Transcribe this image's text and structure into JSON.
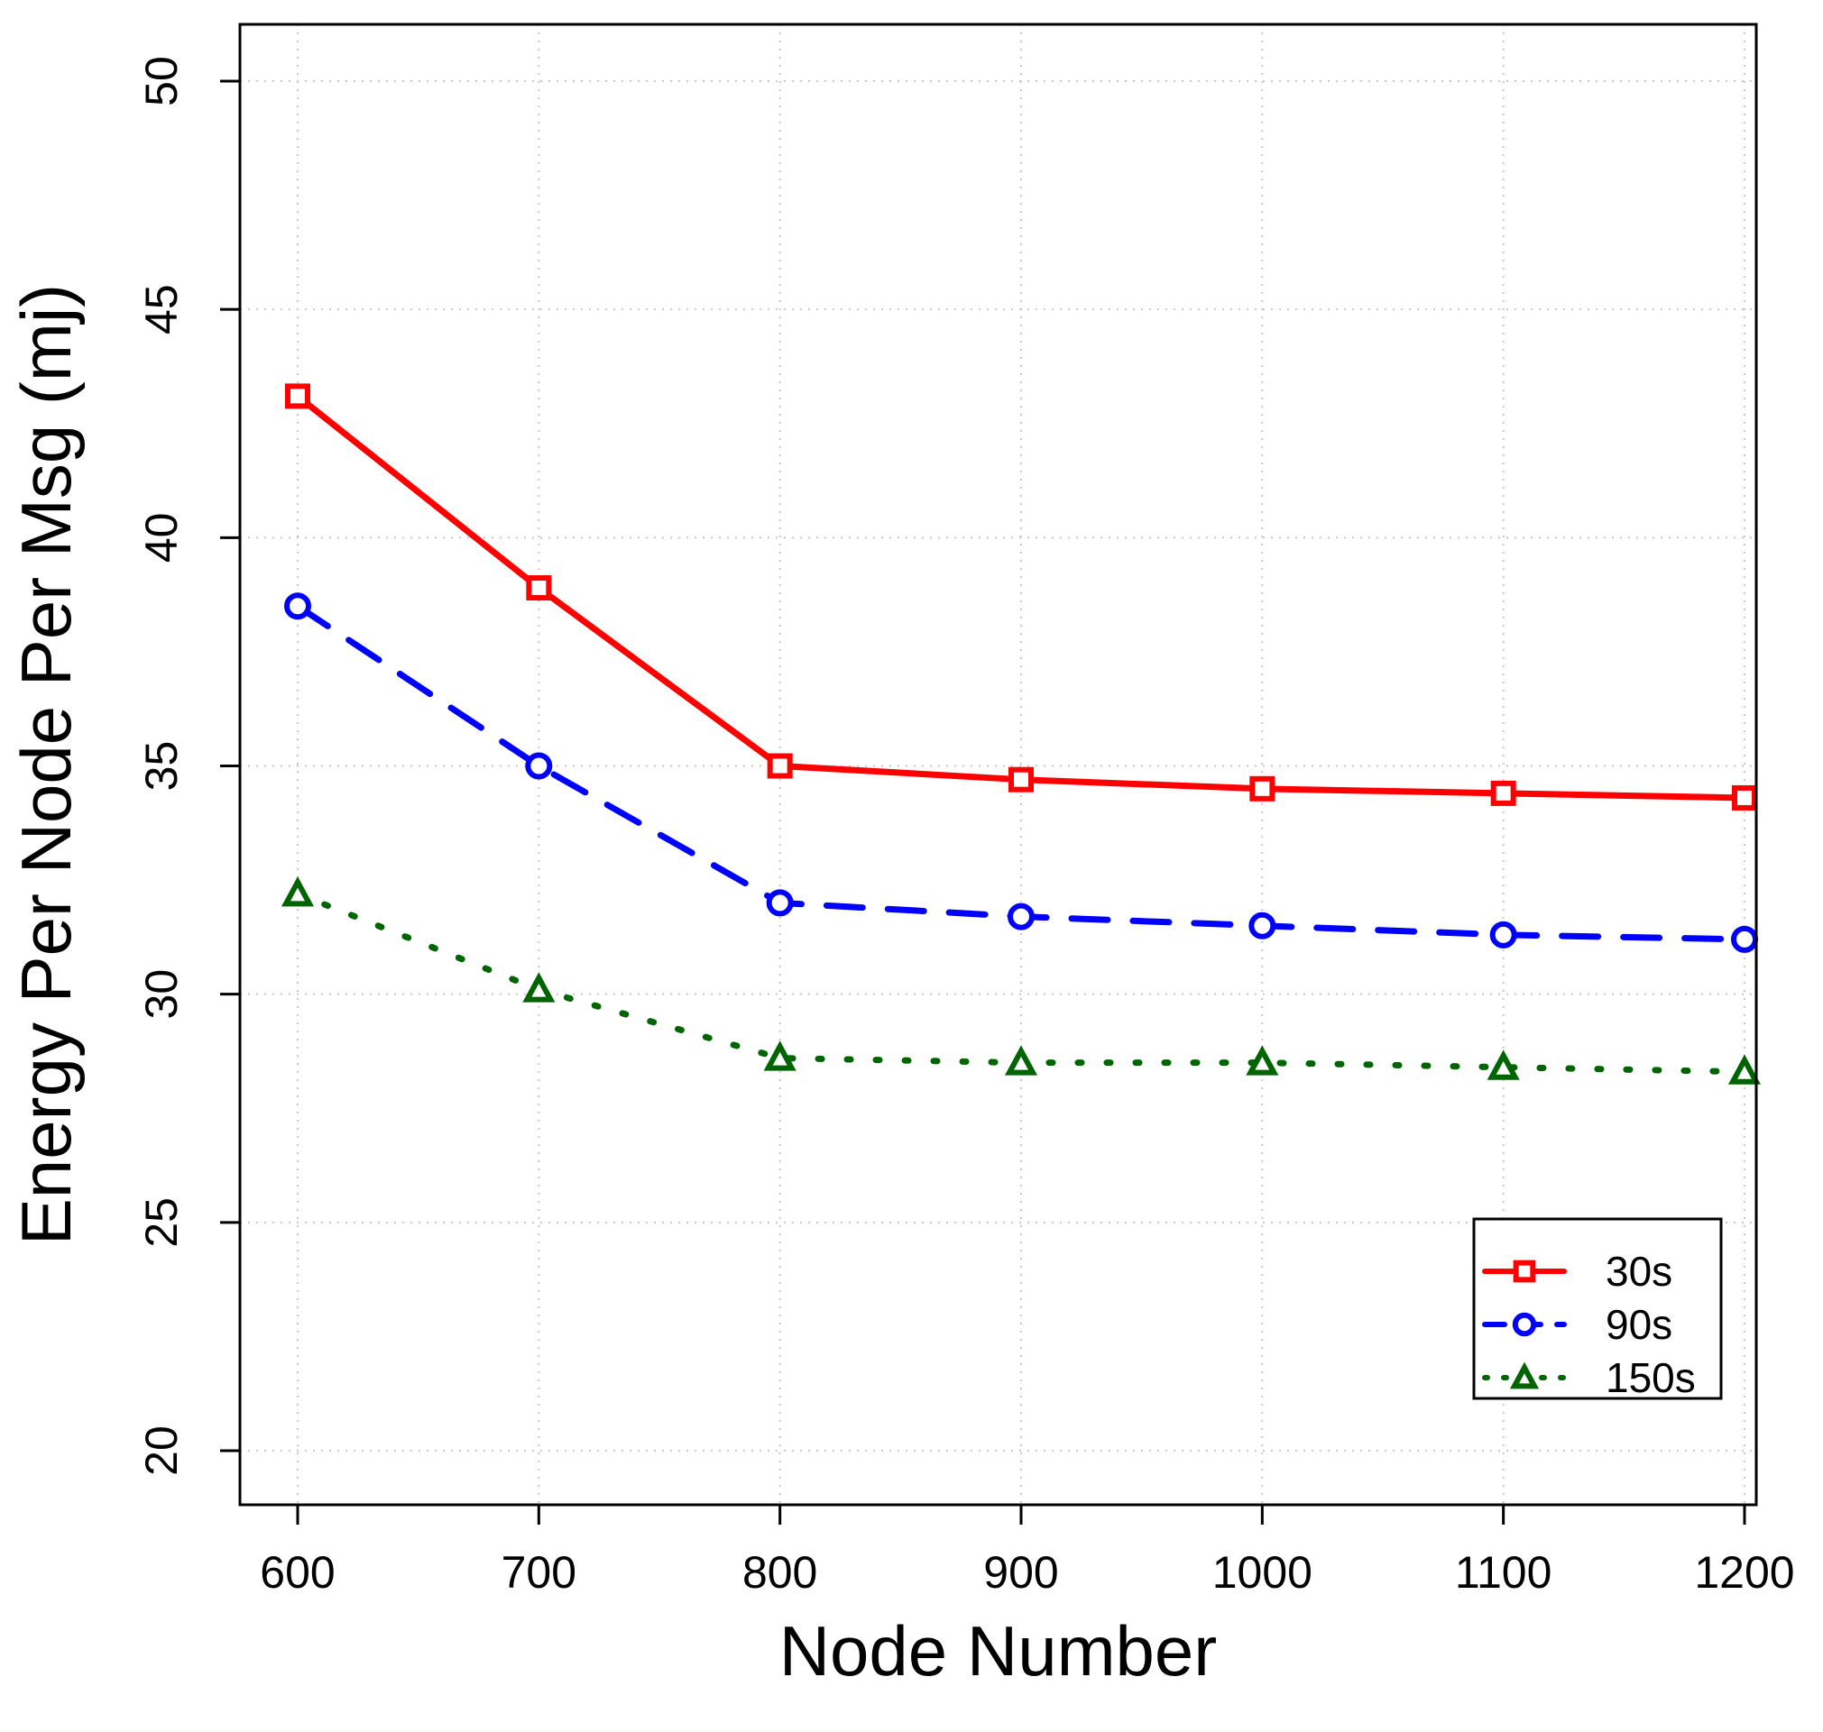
{
  "chart_data": {
    "type": "line",
    "title": "",
    "xlabel": "Node Number",
    "ylabel": "Energy Per Node Per Msg (mj)",
    "x": [
      600,
      700,
      800,
      900,
      1000,
      1100,
      1200
    ],
    "xlim": [
      600,
      1200
    ],
    "ylim": [
      20,
      50
    ],
    "xticks": [
      "600",
      "700",
      "800",
      "900",
      "1000",
      "1100",
      "1200"
    ],
    "yticks": [
      "20",
      "25",
      "30",
      "35",
      "40",
      "45",
      "50"
    ],
    "grid": true,
    "legend_position": "bottom-right",
    "series": [
      {
        "name": "30s",
        "color": "#ff0000",
        "marker": "square",
        "line": "solid",
        "values": [
          43.1,
          38.9,
          35.0,
          34.7,
          34.5,
          34.4,
          34.3
        ]
      },
      {
        "name": "90s",
        "color": "#0000ff",
        "marker": "circle",
        "line": "dashed",
        "values": [
          38.5,
          35.0,
          32.0,
          31.7,
          31.5,
          31.3,
          31.2
        ]
      },
      {
        "name": "150s",
        "color": "#006400",
        "marker": "triangle",
        "line": "dotted",
        "values": [
          32.2,
          30.1,
          28.6,
          28.5,
          28.5,
          28.4,
          28.3
        ]
      }
    ]
  }
}
